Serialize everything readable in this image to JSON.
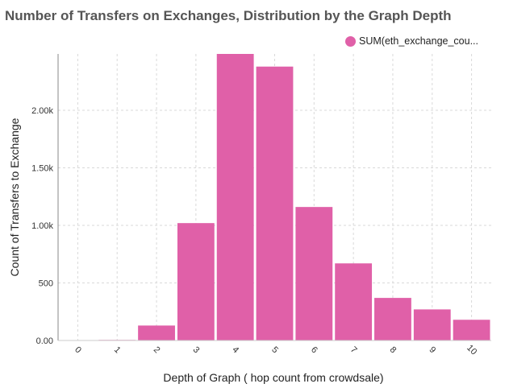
{
  "chart_data": {
    "type": "bar",
    "title": "Number of Transfers on Exchanges, Distribution by the Graph Depth",
    "xlabel": "Depth of Graph ( hop count from crowdsale)",
    "ylabel": "Count of Transfers to Exchange",
    "categories": [
      "0",
      "1",
      "2",
      "3",
      "4",
      "5",
      "6",
      "7",
      "8",
      "9",
      "10"
    ],
    "series": [
      {
        "name": "SUM(eth_exchange_cou...",
        "color": "#e060a8",
        "values": [
          3,
          5,
          130,
          1020,
          2490,
          2380,
          1160,
          670,
          370,
          270,
          180
        ]
      }
    ],
    "yticks": [
      0,
      500,
      1000,
      1500,
      2000
    ],
    "ytick_labels": [
      "0.00",
      "500",
      "1.00k",
      "1.50k",
      "2.00k"
    ],
    "ylim": [
      0,
      2490
    ],
    "grid": true,
    "legend": "top-right"
  }
}
